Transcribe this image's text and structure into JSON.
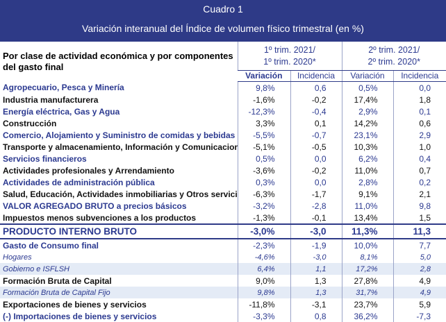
{
  "header": {
    "number": "Cuadro 1",
    "title": "Variación interanual del Índice de volumen físico trimestral (en %)"
  },
  "table": {
    "row_header": "Por clase de actividad económica y por componentes del gasto final",
    "groups": [
      [
        "1º trim. 2021/",
        "1º trim. 2020*"
      ],
      [
        "2º trim. 2021/",
        "2º trim. 2020*"
      ]
    ],
    "subheaders": [
      "Variación",
      "Incidencia",
      "Variación",
      "Incidencia"
    ],
    "rows": [
      [
        "Agropecuario, Pesca y Minería",
        "9,8%",
        "0,6",
        "0,5%",
        "0,0"
      ],
      [
        "Industria manufacturera",
        "-1,6%",
        "-0,2",
        "17,4%",
        "1,8"
      ],
      [
        "Energía eléctrica, Gas y Agua",
        "-12,3%",
        "-0,4",
        "2,9%",
        "0,1"
      ],
      [
        "Construcción",
        "3,3%",
        "0,1",
        "14,2%",
        "0,6"
      ],
      [
        "Comercio,  Alojamiento y Suministro de comidas y bebidas",
        "-5,5%",
        "-0,7",
        "23,1%",
        "2,9"
      ],
      [
        "Transporte y almacenamiento, Información y Comunicaciones",
        "-5,1%",
        "-0,5",
        "10,3%",
        "1,0"
      ],
      [
        "Servicios financieros",
        "0,5%",
        "0,0",
        "6,2%",
        "0,4"
      ],
      [
        "Actividades profesionales y Arrendamiento",
        "-3,6%",
        "-0,2",
        "11,0%",
        "0,7"
      ],
      [
        "Actividades de administración pública",
        "0,3%",
        "0,0",
        "2,8%",
        "0,2"
      ],
      [
        "Salud, Educación, Actividades inmobiliarias y Otros servicios",
        "-6,3%",
        "-1,7",
        "9,1%",
        "2,1"
      ],
      [
        "VALOR AGREGADO BRUTO a precios básicos",
        "-3,2%",
        "-2,8",
        "11,0%",
        "9,8"
      ],
      [
        "Impuestos menos subvenciones a los productos",
        "-1,3%",
        "-0,1",
        "13,4%",
        "1,5"
      ],
      [
        "PRODUCTO INTERNO BRUTO",
        "-3,0%",
        "-3,0",
        "11,3%",
        "11,3"
      ],
      [
        "Gasto de Consumo final",
        "-2,3%",
        "-1,9",
        "10,0%",
        "7,7"
      ],
      [
        "Hogares",
        "-4,6%",
        "-3,0",
        "8,1%",
        "5,0"
      ],
      [
        "Gobierno e ISFLSH",
        "6,4%",
        "1,1",
        "17,2%",
        "2,8"
      ],
      [
        "Formación Bruta de Capital",
        "9,0%",
        "1,3",
        "27,8%",
        "4,9"
      ],
      [
        "Formación Bruta de Capital Fijo",
        "9,8%",
        "1,3",
        "31,7%",
        "4,9"
      ],
      [
        "Exportaciones de bienes y servicios",
        "-11,8%",
        "-3,1",
        "23,7%",
        "5,9"
      ],
      [
        "(-) Importaciones de bienes y servicios",
        "-3,3%",
        "0,8",
        "36,2%",
        "-7,3"
      ]
    ]
  }
}
